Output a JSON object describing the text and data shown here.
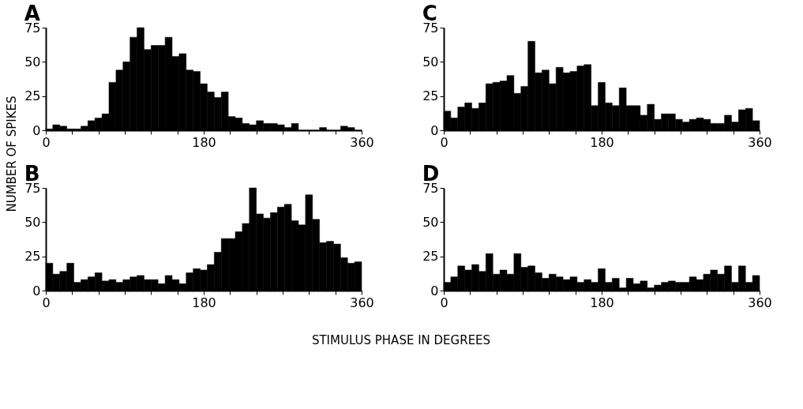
{
  "chart_data": [
    {
      "type": "histogram",
      "title": "A",
      "color": "#000000",
      "bins": [
        0,
        8,
        16,
        24,
        32,
        40,
        48,
        56,
        64,
        72,
        80,
        88,
        96,
        104,
        112,
        120,
        128,
        136,
        144,
        152,
        160,
        168,
        176,
        184,
        192,
        200,
        208,
        216,
        224,
        232,
        240,
        248,
        256,
        264,
        272,
        280,
        288,
        296,
        304,
        312,
        320,
        328,
        336,
        344,
        352,
        360
      ],
      "values": [
        1,
        4,
        3,
        1,
        1,
        3,
        7,
        9,
        12,
        35,
        44,
        50,
        68,
        75,
        59,
        62,
        62,
        68,
        54,
        56,
        44,
        43,
        34,
        28,
        24,
        28,
        10,
        9,
        5,
        4,
        7,
        5,
        5,
        4,
        2,
        5,
        0,
        0,
        0,
        2,
        0,
        0,
        3,
        2,
        0
      ],
      "xlim": [
        0,
        360
      ],
      "xticks": [
        0,
        {
          "value": 30,
          "label": null
        },
        {
          "value": 60,
          "label": null
        },
        {
          "value": 90,
          "label": null
        },
        {
          "value": 120,
          "label": null
        },
        {
          "value": 150,
          "label": null
        },
        180,
        {
          "value": 210,
          "label": null
        },
        {
          "value": 240,
          "label": null
        },
        {
          "value": 270,
          "label": null
        },
        {
          "value": 300,
          "label": null
        },
        {
          "value": 330,
          "label": null
        },
        360
      ],
      "ylim": [
        0,
        75
      ],
      "yticks": [
        0,
        25,
        50,
        75
      ]
    },
    {
      "type": "histogram",
      "title": "C",
      "color": "#000000",
      "bins": [
        0,
        8,
        16,
        24,
        32,
        40,
        48,
        56,
        64,
        72,
        80,
        88,
        96,
        104,
        112,
        120,
        128,
        136,
        144,
        152,
        160,
        168,
        176,
        184,
        192,
        200,
        208,
        216,
        224,
        232,
        240,
        248,
        256,
        264,
        272,
        280,
        288,
        296,
        304,
        312,
        320,
        328,
        336,
        344,
        352,
        360
      ],
      "values": [
        14,
        9,
        17,
        20,
        16,
        20,
        34,
        35,
        36,
        40,
        27,
        32,
        65,
        42,
        44,
        34,
        46,
        42,
        43,
        47,
        48,
        18,
        35,
        20,
        18,
        31,
        18,
        18,
        11,
        19,
        8,
        12,
        12,
        8,
        6,
        8,
        9,
        8,
        5,
        5,
        11,
        6,
        15,
        16,
        7
      ],
      "xlim": [
        0,
        360
      ],
      "xticks": [
        0,
        {
          "value": 30,
          "label": null
        },
        {
          "value": 60,
          "label": null
        },
        {
          "value": 90,
          "label": null
        },
        {
          "value": 120,
          "label": null
        },
        {
          "value": 150,
          "label": null
        },
        180,
        {
          "value": 210,
          "label": null
        },
        {
          "value": 240,
          "label": null
        },
        {
          "value": 270,
          "label": null
        },
        {
          "value": 300,
          "label": null
        },
        {
          "value": 330,
          "label": null
        },
        360
      ],
      "ylim": [
        0,
        75
      ],
      "yticks": [
        0,
        25,
        50,
        75
      ]
    },
    {
      "type": "histogram",
      "title": "B",
      "color": "#000000",
      "bins": [
        0,
        8,
        16,
        24,
        32,
        40,
        48,
        56,
        64,
        72,
        80,
        88,
        96,
        104,
        112,
        120,
        128,
        136,
        144,
        152,
        160,
        168,
        176,
        184,
        192,
        200,
        208,
        216,
        224,
        232,
        240,
        248,
        256,
        264,
        272,
        280,
        288,
        296,
        304,
        312,
        320,
        328,
        336,
        344,
        352,
        360
      ],
      "values": [
        20,
        12,
        14,
        20,
        6,
        8,
        10,
        13,
        7,
        8,
        6,
        8,
        10,
        11,
        8,
        8,
        5,
        11,
        8,
        5,
        13,
        16,
        15,
        19,
        28,
        38,
        38,
        43,
        49,
        75,
        56,
        53,
        57,
        61,
        63,
        51,
        48,
        70,
        52,
        35,
        36,
        34,
        24,
        20,
        21
      ],
      "xlim": [
        0,
        360
      ],
      "xticks": [
        0,
        {
          "value": 30,
          "label": null
        },
        {
          "value": 60,
          "label": null
        },
        {
          "value": 90,
          "label": null
        },
        {
          "value": 120,
          "label": null
        },
        {
          "value": 150,
          "label": null
        },
        180,
        {
          "value": 210,
          "label": null
        },
        {
          "value": 240,
          "label": null
        },
        {
          "value": 270,
          "label": null
        },
        {
          "value": 300,
          "label": null
        },
        {
          "value": 330,
          "label": null
        },
        360
      ],
      "ylim": [
        0,
        75
      ],
      "yticks": [
        0,
        25,
        50,
        75
      ]
    },
    {
      "type": "histogram",
      "title": "D",
      "color": "#000000",
      "bins": [
        0,
        8,
        16,
        24,
        32,
        40,
        48,
        56,
        64,
        72,
        80,
        88,
        96,
        104,
        112,
        120,
        128,
        136,
        144,
        152,
        160,
        168,
        176,
        184,
        192,
        200,
        208,
        216,
        224,
        232,
        240,
        248,
        256,
        264,
        272,
        280,
        288,
        296,
        304,
        312,
        320,
        328,
        336,
        344,
        352,
        360
      ],
      "values": [
        6,
        10,
        18,
        15,
        19,
        14,
        27,
        12,
        15,
        12,
        27,
        17,
        18,
        13,
        9,
        12,
        10,
        8,
        10,
        6,
        8,
        6,
        16,
        6,
        9,
        2,
        9,
        5,
        7,
        2,
        4,
        6,
        7,
        6,
        6,
        10,
        8,
        12,
        15,
        12,
        18,
        6,
        18,
        6,
        11
      ],
      "xlim": [
        0,
        360
      ],
      "xticks": [
        0,
        {
          "value": 30,
          "label": null
        },
        {
          "value": 60,
          "label": null
        },
        {
          "value": 90,
          "label": null
        },
        {
          "value": 120,
          "label": null
        },
        {
          "value": 150,
          "label": null
        },
        180,
        {
          "value": 210,
          "label": null
        },
        {
          "value": 240,
          "label": null
        },
        {
          "value": 270,
          "label": null
        },
        {
          "value": 300,
          "label": null
        },
        {
          "value": 330,
          "label": null
        },
        360
      ],
      "ylim": [
        0,
        75
      ],
      "yticks": [
        0,
        25,
        50,
        75
      ]
    },
    {
      "type": "other",
      "ylabel": "NUMBER OF SPIKES",
      "xlabel": "STIMULUS PHASE IN DEGREES"
    }
  ]
}
